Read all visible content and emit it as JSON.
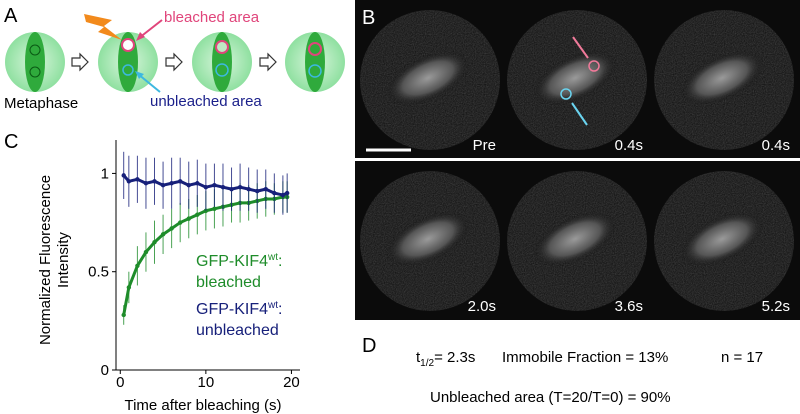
{
  "panels": {
    "a": "A",
    "b": "B",
    "c": "C",
    "d": "D"
  },
  "diagram": {
    "bleached_label": "bleached area",
    "unbleached_label": "unbleached area",
    "stage_label": "Metaphase"
  },
  "images": {
    "time_labels": [
      "Pre",
      "0.4s",
      "0.4s",
      "2.0s",
      "3.6s",
      "5.2s"
    ]
  },
  "chart_data": {
    "type": "line",
    "xlabel": "Time after bleaching (s)",
    "ylabel": [
      "Normalized Fluorescence",
      "Intensity"
    ],
    "x": [
      0.4,
      1,
      2,
      3,
      4,
      5,
      6,
      7,
      8,
      9,
      10,
      11,
      12,
      13,
      14,
      15,
      16,
      17,
      18,
      19,
      19.5
    ],
    "series": [
      {
        "name": "GFP-KIF4",
        "superscript": "wt",
        "suffix": ":",
        "name_line2": "bleached",
        "color": "#1e8c2a",
        "values": [
          0.28,
          0.42,
          0.53,
          0.6,
          0.65,
          0.69,
          0.72,
          0.75,
          0.77,
          0.79,
          0.81,
          0.82,
          0.83,
          0.84,
          0.85,
          0.85,
          0.86,
          0.87,
          0.87,
          0.88,
          0.88
        ],
        "errors": [
          0.05,
          0.08,
          0.1,
          0.1,
          0.11,
          0.1,
          0.1,
          0.1,
          0.1,
          0.1,
          0.1,
          0.1,
          0.1,
          0.09,
          0.1,
          0.09,
          0.09,
          0.09,
          0.08,
          0.08,
          0.08
        ]
      },
      {
        "name": "GFP-KIF4",
        "superscript": "wt",
        "suffix": ":",
        "name_line2": "unbleached",
        "color": "#17207a",
        "values": [
          0.99,
          0.96,
          0.97,
          0.95,
          0.96,
          0.94,
          0.95,
          0.96,
          0.94,
          0.95,
          0.93,
          0.94,
          0.93,
          0.92,
          0.93,
          0.92,
          0.91,
          0.92,
          0.9,
          0.89,
          0.9
        ],
        "errors": [
          0.12,
          0.13,
          0.12,
          0.13,
          0.12,
          0.12,
          0.13,
          0.12,
          0.12,
          0.12,
          0.12,
          0.11,
          0.12,
          0.11,
          0.12,
          0.11,
          0.11,
          0.1,
          0.1,
          0.1,
          0.1
        ]
      }
    ],
    "xlim": [
      -0.5,
      21
    ],
    "ylim": [
      0,
      1.17
    ],
    "xticks": [
      0,
      10,
      20
    ],
    "yticks": [
      0,
      0.5,
      1
    ]
  },
  "summary": {
    "t_half": {
      "symbol": "t",
      "subscript": "1/2",
      "text": "= 2.3s"
    },
    "immobile": "Immobile Fraction = 13%",
    "n": "n = 17",
    "unbleached": "Unbleached area (T=20/T=0) = 90%"
  }
}
